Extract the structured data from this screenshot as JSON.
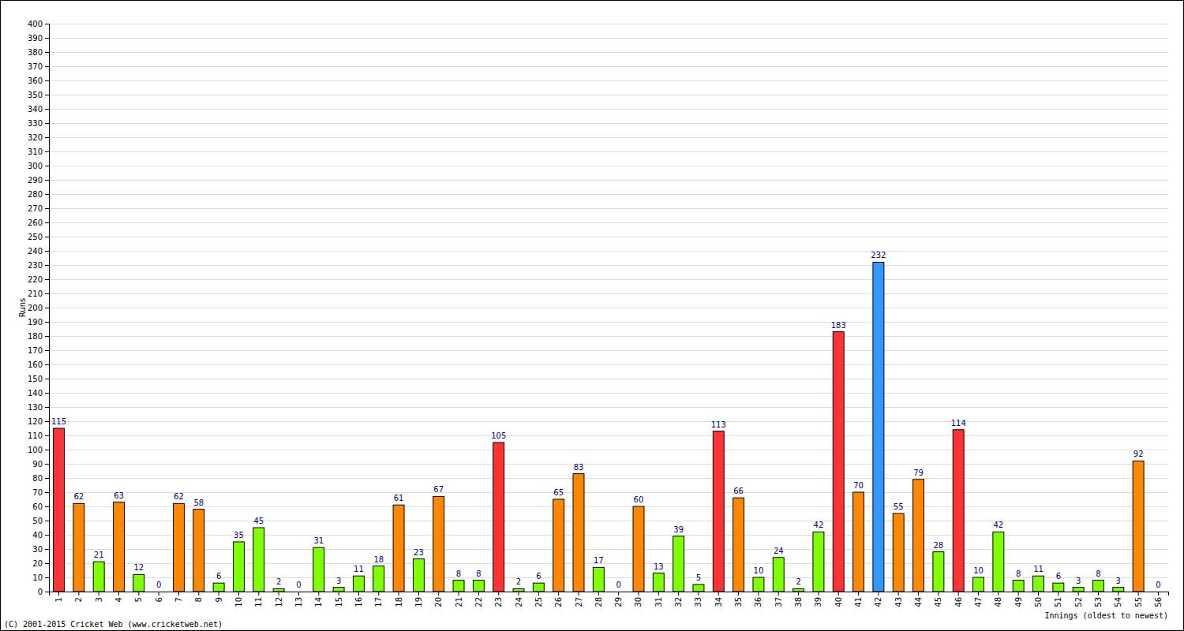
{
  "chart_data": {
    "type": "bar",
    "x_label": "Innings (oldest to newest)",
    "y_label": "Runs",
    "annotations": [
      "(C) 2001-2015 Cricket Web (www.cricketweb.net)"
    ],
    "categories": [
      "1",
      "2",
      "3",
      "4",
      "5",
      "6",
      "7",
      "8",
      "9",
      "10",
      "11",
      "12",
      "13",
      "14",
      "15",
      "16",
      "17",
      "18",
      "19",
      "20",
      "21",
      "22",
      "23",
      "24",
      "25",
      "26",
      "27",
      "28",
      "29",
      "30",
      "31",
      "32",
      "33",
      "34",
      "35",
      "36",
      "37",
      "38",
      "39",
      "40",
      "41",
      "42",
      "43",
      "44",
      "45",
      "46",
      "47",
      "48",
      "49",
      "50",
      "51",
      "52",
      "53",
      "54",
      "55",
      "56"
    ],
    "values": [
      115,
      62,
      21,
      63,
      12,
      0,
      62,
      58,
      6,
      35,
      45,
      2,
      0,
      31,
      3,
      11,
      18,
      61,
      23,
      67,
      8,
      8,
      105,
      2,
      6,
      65,
      83,
      17,
      0,
      60,
      13,
      39,
      5,
      113,
      66,
      10,
      24,
      2,
      42,
      183,
      70,
      232,
      55,
      79,
      28,
      114,
      10,
      42,
      8,
      11,
      6,
      3,
      8,
      3,
      92,
      0
    ],
    "colors": [
      "#ff3333",
      "#ff8800",
      "#80ff00",
      "#ff8800",
      "#80ff00",
      "#80ff00",
      "#ff8800",
      "#ff8800",
      "#80ff00",
      "#80ff00",
      "#80ff00",
      "#80ff00",
      "#80ff00",
      "#80ff00",
      "#80ff00",
      "#80ff00",
      "#80ff00",
      "#ff8800",
      "#80ff00",
      "#ff8800",
      "#80ff00",
      "#80ff00",
      "#ff3333",
      "#80ff00",
      "#80ff00",
      "#ff8800",
      "#ff8800",
      "#80ff00",
      "#80ff00",
      "#ff8800",
      "#80ff00",
      "#80ff00",
      "#80ff00",
      "#ff3333",
      "#ff8800",
      "#80ff00",
      "#80ff00",
      "#80ff00",
      "#80ff00",
      "#ff3333",
      "#ff8800",
      "#3399ff",
      "#ff8800",
      "#ff8800",
      "#80ff00",
      "#ff3333",
      "#80ff00",
      "#80ff00",
      "#80ff00",
      "#80ff00",
      "#80ff00",
      "#80ff00",
      "#80ff00",
      "#80ff00",
      "#ff8800",
      "#80ff00"
    ],
    "ylim": [
      0,
      400
    ],
    "yticks": [
      0,
      10,
      20,
      30,
      40,
      50,
      60,
      70,
      80,
      90,
      100,
      110,
      120,
      130,
      140,
      150,
      160,
      170,
      180,
      190,
      200,
      210,
      220,
      230,
      240,
      250,
      260,
      270,
      280,
      290,
      300,
      310,
      320,
      330,
      340,
      350,
      360,
      370,
      380,
      390,
      400
    ],
    "grid": true,
    "data_labels": true
  }
}
